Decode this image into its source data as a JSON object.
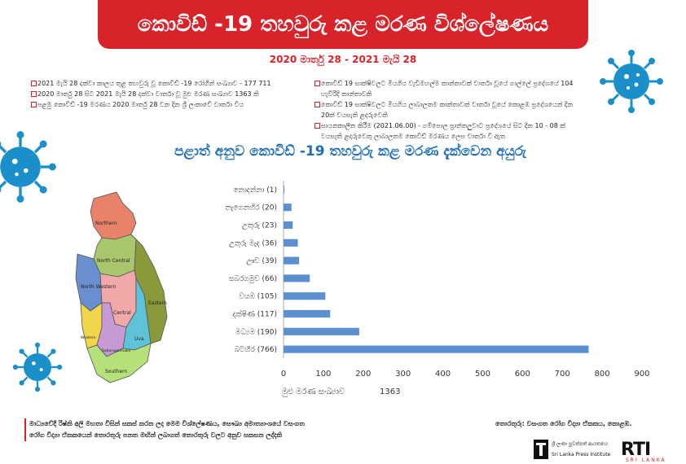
{
  "header": {
    "title": "කොවිඩ් -19 තහවුරු කළ මරණ විශ්ලේෂණය",
    "date_range": "2020 මාර්තු 28 - 2021 මැයි 28"
  },
  "facts_left": [
    "2021 මැයි 28 දක්වා කාලය තුළ තහවුරු වූ කොවිඩ් -19 රෝගීන් සංඛ්‍යාව - 177 711",
    "2020 මාර්තු 28 සිට 2021 මැයි 28 දක්වා වාර්තා වූ මුළු මරණ සංඛ්‍යාව 1363 කි",
    "පළමු කොවිඩ් -19 මරණය 2020 මාර්තු 28 වන දින ශ්‍රී ලංකාවේ වාර්තා විය"
  ],
  "facts_right": [
    "කොවිඩ් 19 සාක්ෂිවලට මියගිය වැඩිමහල්ම කාන්තාවක් වාර්තා වූයේ ගාල්ලේ ප්‍රදේශයේ 104 හැවිරිදි කාන්තාවකි",
    "කොවිඩ් 19 සාක්ෂිවලට මියගිය ලාබාලතම කාන්තාවක් වාර්තා වූයේ කොළඹ ප්‍රදේශයෙන් දින 20ක් වයසැති ළදරුවෙකි",
    "සායනකාලීන කිරීම (2021.06.00) - ගම්පොල ප්‍රාන්තලුවාට ප්‍රදේශයේ සිට දින 10 - 08 ක් වයසැති ළදරුවෙකු ලාබාලතම කොවිඩ් මරණය ලෙස වාර්තා වී ඇත"
  ],
  "chart_title": "පළාත් අනුව කොවිඩ් -19 තහවුරු කළ මරණ දැක්වෙන අයුරු",
  "chart_data": {
    "type": "bar",
    "orientation": "horizontal",
    "categories": [
      "නොදන්නා (1)",
      "නැගෙනහිර (20)",
      "උතුරු (23)",
      "උතුරු මැද (36)",
      "ඌව (39)",
      "සබරගමුව (66)",
      "වයඹ (105)",
      "දක්ෂිණ (117)",
      "මධ්‍යම (190)",
      "බටහිර (766)"
    ],
    "values": [
      1,
      20,
      23,
      36,
      39,
      66,
      105,
      117,
      190,
      766
    ],
    "xlim": [
      0,
      900
    ],
    "xticks": [
      "0",
      "100",
      "200",
      "300",
      "400",
      "500",
      "600",
      "700",
      "800",
      "900"
    ],
    "xlabel": "මුළු මරණ සංඛ්‍යාව",
    "total": "1363",
    "bar_color": "#5b8fd0"
  },
  "map_labels": [
    "Northern",
    "North Central",
    "North Western",
    "Central",
    "Eastern",
    "Western",
    "Sabaragamuwa",
    "Uva",
    "Southern"
  ],
  "footer": {
    "left_line1": "මාධ්‍යවේදී රිෂ්කි අලි මහතා විසින් සකස් කරන ලද මෙම විශ්ලේෂණය, සෞඛ්‍ය අමාත්‍යාංශයේ වසංගත",
    "left_line2": "රෝග විද්‍යා ඒකකයෙන් තොරතුරු පනත මඟින් ලබාගත් තොරතුරු වලට අනුව සකසන ලද්දකි",
    "source": "තොරතුරු: වසංගත රෝග විද්‍යා ඒකකය, කොළඹ."
  },
  "logos": {
    "slpi_sub": "ශ්‍රී ලංකා පුවත්පත් ආයතනය",
    "slpi_name": "Sri Lanka Press Institute",
    "rti": "RTI",
    "rti_sub": "SRI LANKA"
  },
  "colors": {
    "accent": "#d9232a",
    "title_blue": "#1d6fb8",
    "virus": "#1b8fc9"
  }
}
